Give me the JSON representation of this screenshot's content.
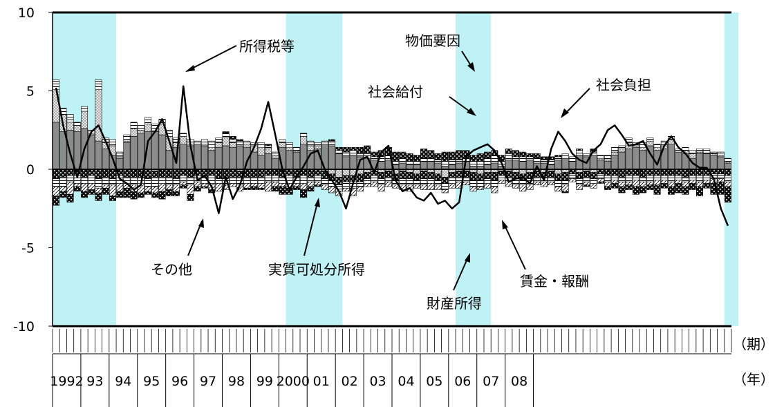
{
  "chart_data": {
    "type": "bar",
    "subtype": "stacked-bar-with-line",
    "ylim": [
      -10,
      10
    ],
    "yticks": [
      10,
      5,
      0,
      -5,
      -10
    ],
    "y_tick_labels": [
      "10",
      "5",
      "0",
      "-5",
      "-10"
    ],
    "x_unit_period": "（期）",
    "x_unit_year": "（年）",
    "year_labels": [
      "1992",
      "93",
      "94",
      "95",
      "96",
      "97",
      "98",
      "99",
      "2000",
      "01",
      "02",
      "03",
      "04",
      "05",
      "06",
      "07",
      "08"
    ],
    "grid": false,
    "colors": {
      "shade": "#bff2f5",
      "line": "#000000",
      "wage": "#8c8c8c",
      "property": "#c9c9c9",
      "social_benefit": "#ffffff",
      "social_burden": "#2b2b2b",
      "tax": "#ffffff",
      "other": "#ffffff",
      "price": "#2b2b2b"
    },
    "series": [
      {
        "name": "賃金・報酬",
        "values": [
          3.0,
          2.4,
          2.5,
          2.4,
          2.6,
          2.2,
          1.8,
          1.3,
          0.9,
          0.7,
          1.7,
          2.1,
          2.3,
          2.4,
          2.4,
          2.2,
          1.2,
          1.4,
          1.6,
          1.5,
          1.6,
          1.5,
          1.2,
          1.4,
          1.5,
          1.4,
          1.5,
          1.4,
          1.1,
          0.9,
          1.0,
          0.7,
          1.4,
          1.2,
          1.1,
          1.6,
          1.2,
          1.3,
          1.6,
          1.5,
          1.0,
          0.8,
          0.9,
          0.8,
          0.7,
          0.6,
          0.5,
          0.6,
          0.3,
          0.4,
          0.3,
          0.3,
          0.5,
          0.5,
          0.4,
          0.2,
          0.3,
          0.4,
          0.5,
          0.2,
          0.2,
          0.3,
          0.4,
          0.2,
          0.6,
          0.6,
          0.5,
          0.6,
          0.4,
          0.4,
          0.3,
          0.6,
          0.7,
          0.5,
          0.9,
          0.8,
          0.9,
          0.6,
          0.5,
          0.9,
          1.1,
          1.3,
          1.4,
          1.2,
          1.5,
          1.2,
          1.3,
          1.6,
          1.1,
          1.0,
          0.7,
          1.0,
          1.0,
          0.9,
          0.8,
          0.4
        ]
      },
      {
        "name": "財産所得",
        "values": [
          2.1,
          1.1,
          0.5,
          0.4,
          1.1,
          0.1,
          3.3,
          0.4,
          0.6,
          0.1,
          0.1,
          0.5,
          0.2,
          0.5,
          -0.1,
          0.7,
          0.9,
          0.3,
          0.5,
          0.1,
          0.0,
          0.1,
          0.2,
          0.3,
          0.5,
          0.3,
          -0.1,
          0.2,
          0.4,
          0.5,
          0.3,
          0.2,
          0.3,
          0.2,
          0.1,
          0.5,
          0.3,
          0.2,
          -0.1,
          -0.3,
          -0.5,
          -0.4,
          -0.4,
          -0.3,
          -0.2,
          -0.1,
          -0.2,
          -0.1,
          -0.3,
          -0.1,
          -0.2,
          -0.3,
          -0.1,
          -0.2,
          -0.3,
          -0.5,
          -0.2,
          -0.1,
          -0.1,
          -0.2,
          -0.3,
          -0.2,
          -0.2,
          -0.1,
          -0.1,
          -0.2,
          -0.3,
          -0.2,
          -0.1,
          -0.2,
          -0.1,
          -0.3,
          -0.2,
          0.0,
          -0.2,
          -0.1,
          -0.2,
          0.1,
          0.1,
          0.2,
          0.2,
          0.4,
          0.1,
          0.2,
          0.3,
          0.2,
          0.2,
          0.3,
          0.0,
          0.2,
          0.3,
          0.1,
          0.0,
          0.1,
          0.1,
          0.1
        ]
      },
      {
        "name": "社会給付",
        "values": [
          0.6,
          0.4,
          0.5,
          0.2,
          0.3,
          0.2,
          0.6,
          0.3,
          0.4,
          0.3,
          0.4,
          0.4,
          0.3,
          0.4,
          0.5,
          0.3,
          0.4,
          0.3,
          0.2,
          0.3,
          0.2,
          0.3,
          0.4,
          0.3,
          0.3,
          0.2,
          0.3,
          0.2,
          0.2,
          0.3,
          0.2,
          0.2,
          0.2,
          0.3,
          0.2,
          0.2,
          0.3,
          0.2,
          0.2,
          0.3,
          0.2,
          0.3,
          0.3,
          0.2,
          0.3,
          0.2,
          0.3,
          0.3,
          0.2,
          0.3,
          0.2,
          0.2,
          0.2,
          0.2,
          0.2,
          0.3,
          0.3,
          0.2,
          0.2,
          0.3,
          0.3,
          0.4,
          0.5,
          0.3,
          0.4,
          0.2,
          0.3,
          0.2,
          0.3,
          0.2,
          0.3,
          0.2,
          0.3,
          0.3,
          0.3,
          0.2,
          0.2,
          0.2,
          0.3,
          0.3,
          0.2,
          0.3,
          0.2,
          0.3,
          0.2,
          0.2,
          0.3,
          0.2,
          0.2,
          0.2,
          0.2,
          0.2,
          0.3,
          0.1,
          0.2,
          0.2
        ]
      },
      {
        "name": "社会負担",
        "values": [
          -0.6,
          -0.5,
          -0.4,
          -0.4,
          -0.5,
          -0.4,
          -0.6,
          -0.5,
          -0.6,
          -0.4,
          -0.5,
          -0.5,
          -0.5,
          -0.6,
          -0.4,
          -0.5,
          -0.5,
          -0.6,
          -0.4,
          -0.5,
          -0.4,
          -0.5,
          -0.4,
          -0.6,
          -0.6,
          -0.5,
          -0.4,
          -0.5,
          -0.5,
          -0.5,
          -0.4,
          -0.4,
          -0.5,
          -0.4,
          -0.5,
          -0.4,
          -0.5,
          -0.4,
          -0.5,
          -0.4,
          -0.5,
          -0.4,
          -0.4,
          -0.5,
          -0.4,
          -0.3,
          -0.4,
          -0.4,
          -0.4,
          -0.5,
          -0.4,
          -0.4,
          -0.5,
          -0.4,
          -0.4,
          -0.4,
          -0.3,
          -0.4,
          -0.4,
          -0.5,
          -0.4,
          -0.4,
          -0.5,
          -0.3,
          -0.4,
          -0.4,
          -0.4,
          -0.4,
          -0.4,
          -0.3,
          -0.4,
          -0.4,
          -0.5,
          -0.3,
          -0.4,
          -0.4,
          -0.4,
          -0.3,
          -0.4,
          -0.4,
          -0.5,
          -0.4,
          -0.4,
          -0.5,
          -0.4,
          -0.4,
          -0.4,
          -0.4,
          -0.4,
          -0.5,
          -0.4,
          -0.4,
          -0.4,
          -0.3,
          -0.3,
          -0.4
        ]
      },
      {
        "name": "所得税等",
        "values": [
          -0.5,
          -0.6,
          -0.4,
          -0.5,
          -0.4,
          -0.5,
          -0.6,
          -0.5,
          -0.4,
          -0.5,
          -0.4,
          -0.5,
          -0.4,
          -0.5,
          -0.6,
          -0.4,
          -0.5,
          -0.4,
          -0.4,
          -0.5,
          -0.4,
          -0.4,
          -0.5,
          -0.3,
          -0.4,
          -0.4,
          -0.5,
          -0.4,
          -0.4,
          -0.4,
          -0.4,
          -0.4,
          -0.4,
          -0.5,
          -0.4,
          -0.5,
          -0.3,
          -0.4,
          -0.4,
          -0.4,
          -0.4,
          -0.4,
          -0.4,
          -0.3,
          -0.3,
          -0.4,
          -0.4,
          -0.3,
          -0.3,
          -0.4,
          -0.4,
          -0.3,
          -0.4,
          -0.3,
          -0.3,
          -0.4,
          -0.4,
          -0.3,
          -0.3,
          -0.4,
          -0.4,
          -0.3,
          -0.4,
          -0.3,
          -0.3,
          -0.4,
          -0.3,
          -0.4,
          -0.3,
          -0.3,
          -0.3,
          -0.4,
          -0.3,
          -0.3,
          -0.4,
          -0.3,
          -0.3,
          -0.3,
          -0.4,
          -0.3,
          -0.3,
          -0.4,
          -0.3,
          -0.3,
          -0.4,
          -0.3,
          -0.3,
          -0.4,
          -0.3,
          -0.3,
          -0.3,
          -0.4,
          -0.3,
          -0.3,
          -0.3,
          -0.4
        ]
      },
      {
        "name": "その他",
        "values": [
          -0.6,
          -0.3,
          -0.8,
          -0.2,
          -0.5,
          -0.4,
          -0.3,
          -0.2,
          -0.7,
          -0.5,
          -0.3,
          -0.4,
          -0.6,
          -0.3,
          -0.4,
          -0.5,
          -0.3,
          -0.4,
          -0.2,
          -0.6,
          -0.3,
          -0.2,
          -0.4,
          -0.5,
          -0.3,
          -0.2,
          -0.4,
          -0.3,
          -0.2,
          -0.3,
          -0.6,
          -0.3,
          -0.2,
          -0.3,
          -0.2,
          -0.4,
          -0.3,
          -0.2,
          -0.3,
          -0.4,
          -0.3,
          -0.2,
          -0.5,
          -0.3,
          -0.2,
          -0.3,
          -0.4,
          -0.3,
          -0.2,
          -0.3,
          -0.4,
          -0.2,
          -0.3,
          -0.4,
          -0.3,
          -0.2,
          -0.3,
          -0.4,
          -0.2,
          -0.3,
          -0.2,
          -0.3,
          -0.4,
          -0.2,
          -0.3,
          -0.2,
          -0.4,
          -0.3,
          -0.2,
          -0.3,
          -0.2,
          -0.3,
          -0.4,
          -0.2,
          -0.3,
          -0.2,
          -0.3,
          -0.2,
          -0.3,
          -0.2,
          -0.3,
          -0.2,
          -0.4,
          -0.3,
          -0.2,
          -0.3,
          -0.2,
          -0.3,
          -0.2,
          -0.3,
          -0.2,
          -0.3,
          -0.2,
          -0.3,
          -0.2,
          -0.3
        ]
      },
      {
        "name": "物価要因",
        "values": [
          -0.6,
          -0.4,
          -0.5,
          -0.3,
          -0.4,
          -0.3,
          -0.5,
          -0.4,
          -0.3,
          -0.4,
          -0.6,
          -0.5,
          -0.3,
          -0.2,
          -0.3,
          -0.5,
          -0.4,
          -0.3,
          -0.2,
          -0.4,
          -0.3,
          -0.1,
          -0.2,
          0.0,
          0.1,
          0.2,
          0.1,
          -0.1,
          -0.2,
          -0.1,
          0.1,
          -0.3,
          -0.5,
          -0.4,
          -0.2,
          -0.5,
          -0.3,
          -0.1,
          0.0,
          0.1,
          0.2,
          0.3,
          0.2,
          0.4,
          0.5,
          0.3,
          0.4,
          0.5,
          0.6,
          0.4,
          0.5,
          0.4,
          0.6,
          0.5,
          0.4,
          0.6,
          0.5,
          0.6,
          0.5,
          0.4,
          0.5,
          0.4,
          0.3,
          0.4,
          0.3,
          0.4,
          0.3,
          0.2,
          0.3,
          0.2,
          0.2,
          0.1,
          -0.1,
          0.0,
          0.1,
          -0.1,
          0.2,
          -0.1,
          -0.2,
          -0.3,
          -0.4,
          -0.3,
          -0.5,
          -0.4,
          -0.3,
          -0.6,
          -0.3,
          -0.5,
          -0.6,
          -0.5,
          -0.4,
          -0.6,
          -0.3,
          -0.7,
          -0.8,
          -1.0
        ]
      },
      {
        "name": "実質可処分所得",
        "values": [
          5.2,
          2.8,
          1.0,
          -0.5,
          1.3,
          2.4,
          2.8,
          1.8,
          0.7,
          -0.6,
          -0.9,
          -1.3,
          -1.0,
          1.8,
          2.4,
          3.2,
          1.8,
          0.4,
          5.3,
          1.5,
          -0.7,
          -0.4,
          -1.1,
          -2.8,
          -0.5,
          -1.9,
          -1.0,
          0.5,
          1.4,
          2.6,
          4.3,
          2.2,
          0.0,
          -1.3,
          -0.5,
          0.2,
          1.0,
          1.2,
          0.0,
          -0.7,
          -1.4,
          -2.5,
          -0.9,
          0.6,
          0.8,
          -0.2,
          1.1,
          1.5,
          -0.7,
          -1.4,
          -1.2,
          -1.8,
          -2.0,
          -1.5,
          -2.2,
          -2.0,
          -2.5,
          -2.1,
          0.8,
          1.2,
          1.4,
          1.6,
          1.2,
          0.4,
          -0.8,
          -0.6,
          -0.5,
          -0.9,
          0.2,
          -0.7,
          1.3,
          2.4,
          1.8,
          1.0,
          0.6,
          0.4,
          1.2,
          1.6,
          2.5,
          2.8,
          2.2,
          1.5,
          1.6,
          1.8,
          1.0,
          0.3,
          1.5,
          2.1,
          1.4,
          1.0,
          0.4,
          0.1,
          0.1,
          -0.6,
          -2.5,
          -3.6
        ]
      }
    ],
    "recession_shading": [
      [
        0,
        8
      ],
      [
        33,
        40
      ],
      [
        57,
        61
      ],
      [
        95,
        96
      ]
    ],
    "annotations": [
      "所得税等",
      "物価要因",
      "社会給付",
      "社会負担",
      "その他",
      "実質可処分所得",
      "財産所得",
      "賃金・報酬"
    ]
  }
}
